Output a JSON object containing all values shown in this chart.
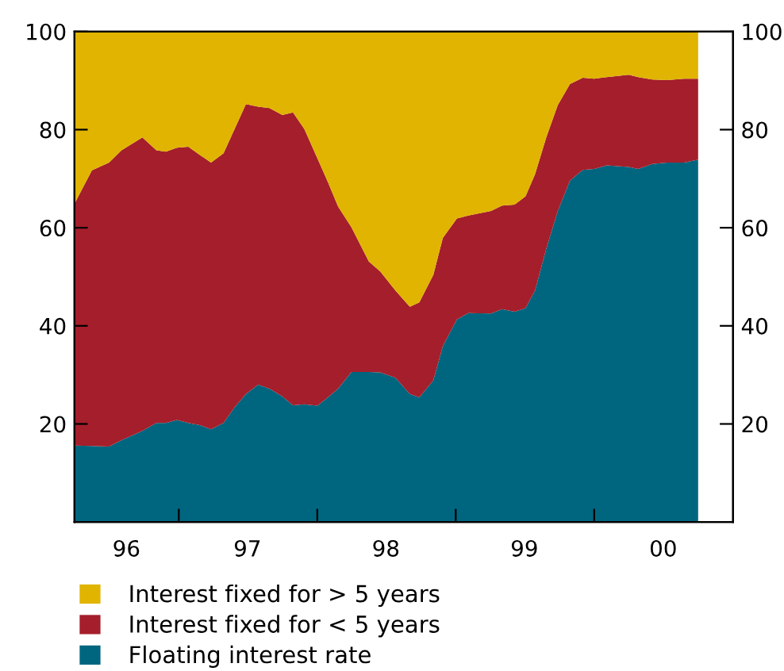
{
  "chart_data": {
    "type": "area",
    "stacked": true,
    "x": [
      "1996-04-01",
      "1996-05-17",
      "1996-07-01",
      "1996-08-03",
      "1996-09-27",
      "1996-11-03",
      "1996-11-28",
      "1996-12-27",
      "1997-01-26",
      "1997-02-28",
      "1997-03-27",
      "1997-04-29",
      "1997-05-28",
      "1997-06-27",
      "1997-07-29",
      "1997-08-28",
      "1997-10-01",
      "1997-10-29",
      "1997-11-28",
      "1998-01-01",
      "1998-01-29",
      "1998-02-25",
      "1998-04-01",
      "1998-05-17",
      "1998-06-16",
      "1998-07-26",
      "1998-09-02",
      "1998-09-27",
      "1998-11-03",
      "1998-11-28",
      "1999-01-04",
      "1999-02-03",
      "1999-04-04",
      "1999-05-03",
      "1999-06-05",
      "1999-07-04",
      "1999-07-29",
      "1999-08-28",
      "1999-09-27",
      "1999-10-29",
      "1999-12-02",
      "2000-01-01",
      "2000-02-03",
      "2000-04-01",
      "2000-04-26",
      "2000-06-02",
      "2000-07-11",
      "2000-08-25",
      "2000-10-01"
    ],
    "series": [
      {
        "name": "Floating interest rate",
        "color": "#00667f",
        "values": [
          15.6,
          15.5,
          15.4,
          16.7,
          18.6,
          20.2,
          20.2,
          20.8,
          20.2,
          19.7,
          18.9,
          20.2,
          23.4,
          26.1,
          28.0,
          27.2,
          25.6,
          23.8,
          24.0,
          23.7,
          25.4,
          27.2,
          30.6,
          30.6,
          30.5,
          29.4,
          26.1,
          25.4,
          28.9,
          35.9,
          41.3,
          42.6,
          42.5,
          43.4,
          42.9,
          43.6,
          47.2,
          55.8,
          63.4,
          69.6,
          71.8,
          72.0,
          72.7,
          72.4,
          72.0,
          73.0,
          73.3,
          73.3,
          73.9
        ]
      },
      {
        "name": "Interest fixed for < 5 years",
        "color": "#a51e2b",
        "values": [
          49.3,
          56.2,
          57.9,
          59.1,
          59.8,
          55.6,
          55.3,
          55.5,
          56.3,
          55.0,
          54.4,
          55.0,
          56.7,
          59.1,
          56.7,
          57.2,
          57.4,
          59.7,
          56.1,
          50.5,
          43.9,
          37.1,
          29.5,
          22.5,
          20.6,
          17.8,
          17.8,
          19.4,
          21.5,
          22.0,
          20.6,
          19.9,
          20.9,
          21.1,
          21.8,
          22.8,
          23.7,
          22.7,
          21.6,
          19.7,
          18.8,
          18.4,
          18.0,
          18.8,
          18.7,
          17.2,
          16.8,
          17.1,
          16.5
        ]
      },
      {
        "name": "Interest fixed for > 5 years",
        "color": "#e0b400",
        "values": [
          35.1,
          28.3,
          26.7,
          24.2,
          21.6,
          24.2,
          24.5,
          23.7,
          23.5,
          25.3,
          26.7,
          24.8,
          19.9,
          14.8,
          15.3,
          15.6,
          17.0,
          16.5,
          19.9,
          25.8,
          30.7,
          35.7,
          39.9,
          46.9,
          48.9,
          52.8,
          56.1,
          55.2,
          49.6,
          42.1,
          38.1,
          37.5,
          36.6,
          35.5,
          35.3,
          33.6,
          29.1,
          21.5,
          15.0,
          10.7,
          9.4,
          9.6,
          9.3,
          8.8,
          9.3,
          9.8,
          9.9,
          9.6,
          9.6
        ]
      }
    ],
    "xlim": [
      "1996-04-01",
      "2001-01-01"
    ],
    "xticks": [
      {
        "value": "1996-08-16",
        "label": "96"
      },
      {
        "value": "1997-01-01",
        "label": null
      },
      {
        "value": "1997-07-01",
        "label": "97"
      },
      {
        "value": "1998-01-01",
        "label": null
      },
      {
        "value": "1998-07-01",
        "label": "98"
      },
      {
        "value": "1999-01-01",
        "label": null
      },
      {
        "value": "1999-07-01",
        "label": "99"
      },
      {
        "value": "2000-01-01",
        "label": null
      },
      {
        "value": "2000-07-01",
        "label": "00"
      }
    ],
    "ylim": [
      0,
      100
    ],
    "yticks": [
      20,
      40,
      60,
      80,
      100
    ],
    "y2lim": [
      0,
      100
    ],
    "y2ticks": [
      20,
      40,
      60,
      80,
      100
    ],
    "grid": false,
    "legend": "bottom"
  }
}
